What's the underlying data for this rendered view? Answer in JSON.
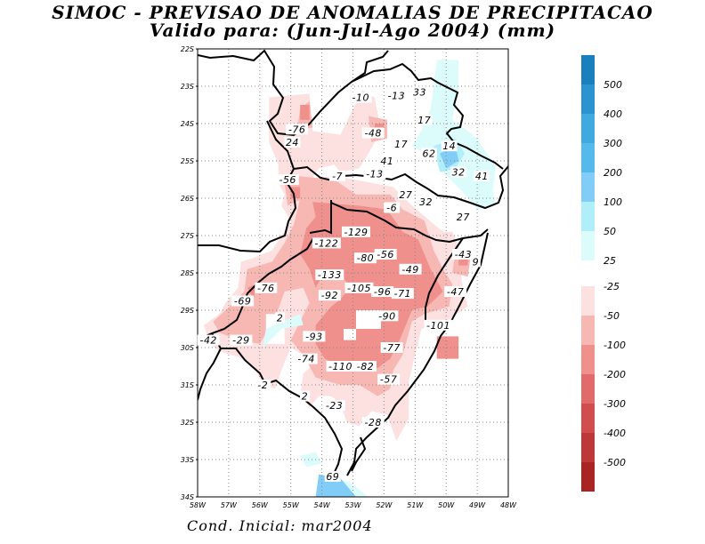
{
  "title": "SIMOC - PREVISAO DE ANOMALIAS DE PRECIPITACAO",
  "subtitle": "Valido para: (Jun-Jul-Ago 2004) (mm)",
  "footer": "Cond. Inicial: mar2004",
  "map": {
    "lat_labels": [
      "22S",
      "23S",
      "24S",
      "25S",
      "26S",
      "27S",
      "28S",
      "29S",
      "30S",
      "31S",
      "32S",
      "33S",
      "34S"
    ],
    "lon_labels": [
      "58W",
      "57W",
      "56W",
      "55W",
      "54W",
      "53W",
      "52W",
      "51W",
      "50W",
      "49W",
      "48W"
    ],
    "anomaly_labels": [
      {
        "text": "-10",
        "lon": -52.75,
        "lat": -23.3
      },
      {
        "text": "-13",
        "lon": -51.6,
        "lat": -23.25
      },
      {
        "text": "33",
        "lon": -50.85,
        "lat": -23.15
      },
      {
        "text": "17",
        "lon": -50.7,
        "lat": -23.9
      },
      {
        "text": "-76",
        "lon": -54.8,
        "lat": -24.15
      },
      {
        "text": "-48",
        "lon": -52.35,
        "lat": -24.25
      },
      {
        "text": "24",
        "lon": -54.95,
        "lat": -24.5
      },
      {
        "text": "17",
        "lon": -51.45,
        "lat": -24.55
      },
      {
        "text": "14",
        "lon": -49.9,
        "lat": -24.6
      },
      {
        "text": "62",
        "lon": -50.55,
        "lat": -24.8
      },
      {
        "text": "41",
        "lon": -51.9,
        "lat": -25.0
      },
      {
        "text": "32",
        "lon": -49.6,
        "lat": -25.3
      },
      {
        "text": "41",
        "lon": -48.85,
        "lat": -25.4
      },
      {
        "text": "-56",
        "lon": -55.1,
        "lat": -25.5
      },
      {
        "text": "-7",
        "lon": -53.5,
        "lat": -25.4
      },
      {
        "text": "-13",
        "lon": -52.3,
        "lat": -25.35
      },
      {
        "text": "27",
        "lon": -51.3,
        "lat": -25.9
      },
      {
        "text": "32",
        "lon": -50.65,
        "lat": -26.1
      },
      {
        "text": "-6",
        "lon": -51.75,
        "lat": -26.25
      },
      {
        "text": "27",
        "lon": -49.45,
        "lat": -26.5
      },
      {
        "text": "-129",
        "lon": -52.9,
        "lat": -26.9
      },
      {
        "text": "-122",
        "lon": -53.85,
        "lat": -27.2
      },
      {
        "text": "-56",
        "lon": -51.95,
        "lat": -27.5
      },
      {
        "text": "-80",
        "lon": -52.6,
        "lat": -27.6
      },
      {
        "text": "-43",
        "lon": -49.45,
        "lat": -27.5
      },
      {
        "text": "9",
        "lon": -49.05,
        "lat": -27.7
      },
      {
        "text": "-133",
        "lon": -53.75,
        "lat": -28.05
      },
      {
        "text": "-49",
        "lon": -51.15,
        "lat": -27.9
      },
      {
        "text": "-76",
        "lon": -55.8,
        "lat": -28.4
      },
      {
        "text": "-92",
        "lon": -53.75,
        "lat": -28.6
      },
      {
        "text": "-105",
        "lon": -52.8,
        "lat": -28.4
      },
      {
        "text": "-96",
        "lon": -52.05,
        "lat": -28.5
      },
      {
        "text": "-71",
        "lon": -51.4,
        "lat": -28.55
      },
      {
        "text": "-47",
        "lon": -49.7,
        "lat": -28.5
      },
      {
        "text": "-69",
        "lon": -56.55,
        "lat": -28.75
      },
      {
        "text": "2",
        "lon": -55.35,
        "lat": -29.2
      },
      {
        "text": "-90",
        "lon": -51.9,
        "lat": -29.15
      },
      {
        "text": "-101",
        "lon": -50.25,
        "lat": -29.4
      },
      {
        "text": "-42",
        "lon": -57.65,
        "lat": -29.8
      },
      {
        "text": "-29",
        "lon": -56.6,
        "lat": -29.8
      },
      {
        "text": "-93",
        "lon": -54.25,
        "lat": -29.7
      },
      {
        "text": "-77",
        "lon": -51.75,
        "lat": -30.0
      },
      {
        "text": "-74",
        "lon": -54.5,
        "lat": -30.3
      },
      {
        "text": "-110",
        "lon": -53.4,
        "lat": -30.5
      },
      {
        "text": "-82",
        "lon": -52.6,
        "lat": -30.5
      },
      {
        "text": "-57",
        "lon": -51.85,
        "lat": -30.85
      },
      {
        "text": "-2",
        "lon": -55.9,
        "lat": -31.0
      },
      {
        "text": "2",
        "lon": -54.55,
        "lat": -31.3
      },
      {
        "text": "-23",
        "lon": -53.6,
        "lat": -31.55
      },
      {
        "text": "-28",
        "lon": -52.35,
        "lat": -32.0
      },
      {
        "text": "69",
        "lon": -53.65,
        "lat": -33.45
      }
    ]
  },
  "colorbar": {
    "positive": [
      {
        "label": "500",
        "color": "#1a7fbd"
      },
      {
        "label": "400",
        "color": "#2b93cf"
      },
      {
        "label": "300",
        "color": "#3fa9e0"
      },
      {
        "label": "200",
        "color": "#55b9ec"
      },
      {
        "label": "100",
        "color": "#82cdf7"
      },
      {
        "label": "50",
        "color": "#b0eef9"
      },
      {
        "label": "25",
        "color": "#dcfcfc"
      }
    ],
    "negative": [
      {
        "label": "-25",
        "color": "#fde0e0"
      },
      {
        "label": "-50",
        "color": "#f7b8b4"
      },
      {
        "label": "-100",
        "color": "#f0908c"
      },
      {
        "label": "-200",
        "color": "#e16b6b"
      },
      {
        "label": "-300",
        "color": "#d14e4e"
      },
      {
        "label": "-400",
        "color": "#bd3939"
      },
      {
        "label": "-500",
        "color": "#aa2424"
      }
    ]
  }
}
